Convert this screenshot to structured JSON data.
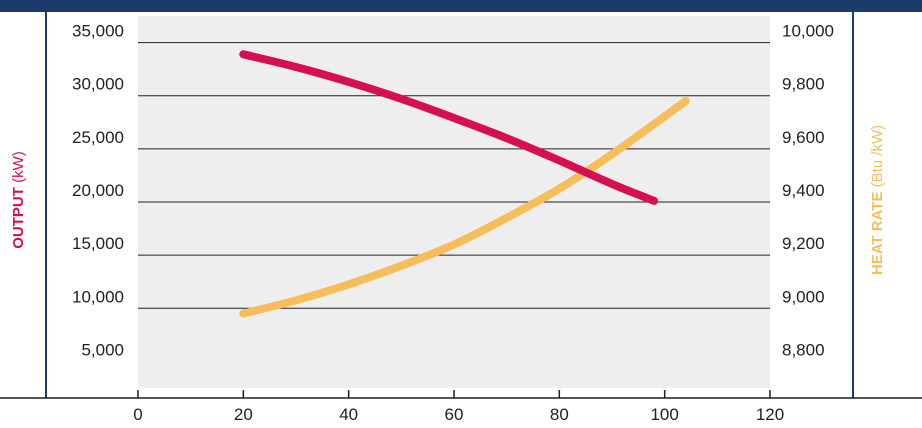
{
  "colors": {
    "top_bar": "#1a3b6b",
    "plot_background": "#eeeeee",
    "gridline": "#222222",
    "output_series": "#d6104f",
    "heat_rate_series": "#f6be5a"
  },
  "chart_data": {
    "type": "line",
    "grid": true,
    "x_axis": {
      "range": [
        0,
        120
      ],
      "ticks": [
        "0",
        "20",
        "40",
        "60",
        "80",
        "100",
        "120"
      ]
    },
    "y_axis_left": {
      "title_bold": "OUTPUT",
      "title_unit": "(kW)",
      "range": [
        2500,
        37500
      ],
      "ticks": [
        "5,000",
        "10,000",
        "15,000",
        "20,000",
        "25,000",
        "30,000",
        "35,000"
      ]
    },
    "y_axis_right": {
      "title_bold": "HEAT RATE",
      "title_unit": "(Btu /kW)",
      "range": [
        8700,
        10100
      ],
      "ticks": [
        "8,800",
        "9,000",
        "9,200",
        "9,400",
        "9,600",
        "9,800",
        "10,000"
      ]
    },
    "series": [
      {
        "axis": "left",
        "x": [
          20,
          30,
          40,
          50,
          60,
          70,
          80,
          90,
          98
        ],
        "y": [
          33900,
          32700,
          31300,
          29700,
          27900,
          26000,
          23900,
          21700,
          20100
        ]
      },
      {
        "axis": "right",
        "x": [
          20,
          30,
          40,
          50,
          60,
          70,
          80,
          90,
          104
        ],
        "y": [
          8980,
          9030,
          9090,
          9160,
          9240,
          9340,
          9450,
          9580,
          9780
        ]
      }
    ]
  }
}
